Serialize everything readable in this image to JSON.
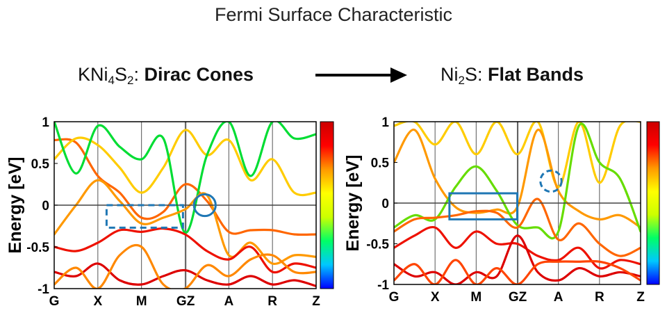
{
  "figure": {
    "title": "Fermi Surface Characteristic",
    "left_heading": {
      "formula_prefix": "KNi",
      "sub1": "4",
      "mid": "S",
      "sub2": "2",
      "colon": ": ",
      "bold": "Dirac Cones"
    },
    "right_heading": {
      "formula_prefix": "Ni",
      "sub1": "2",
      "mid": "S",
      "colon": ": ",
      "bold": "Flat Bands"
    },
    "arrow_color": "#000000",
    "annotation_color": "#1f77b4"
  },
  "chart_data": [
    {
      "type": "line",
      "ylabel": "Energy [eV]",
      "ylim": [
        -1,
        1
      ],
      "yticks": [
        1,
        0.5,
        0,
        -0.5,
        -1
      ],
      "ytick_labels": [
        "1",
        "0.5",
        "0",
        "-0.5",
        "-1"
      ],
      "kpoints": [
        "G",
        "X",
        "M",
        "G",
        "Z",
        "A",
        "R",
        "Z"
      ],
      "kpath": [
        0,
        1,
        2,
        3,
        3.02,
        4,
        5,
        6
      ],
      "xtick_labels": [
        "G",
        "X",
        "M",
        "GZ",
        "A",
        "R",
        "Z"
      ],
      "xtick_pos": [
        0,
        1,
        2,
        3.01,
        4,
        5,
        6
      ],
      "fermi_level": 0,
      "colormap": [
        "#0000ff",
        "#00c8ff",
        "#00ff66",
        "#ccff00",
        "#ffff00",
        "#ff9900",
        "#ff0000",
        "#cc0000"
      ],
      "grid": "vertical lines at high-symmetry points",
      "annotations": [
        {
          "shape": "dashed-rect",
          "x": [
            1.2,
            2.95
          ],
          "y": [
            -0.27,
            0.0
          ]
        },
        {
          "shape": "circle",
          "x": 3.45,
          "y": 0.0,
          "r": 0.13
        }
      ],
      "bands": [
        {
          "color": "#ff6600",
          "x": [
            0,
            0.5,
            1,
            1.5,
            2,
            2.5,
            3,
            3.5,
            4,
            4.5,
            5,
            5.5,
            6
          ],
          "y": [
            0.78,
            0.75,
            0.35,
            0.15,
            -0.15,
            -0.08,
            0.25,
            0.05,
            -0.32,
            -0.3,
            -0.3,
            -0.35,
            -0.35
          ]
        },
        {
          "color": "#ffcc00",
          "x": [
            0,
            0.5,
            1,
            1.5,
            2,
            2.5,
            3,
            3.5,
            4,
            4.5,
            5,
            5.5,
            6
          ],
          "y": [
            0.55,
            0.8,
            0.72,
            0.45,
            0.15,
            0.45,
            0.9,
            0.6,
            0.78,
            0.3,
            0.55,
            0.15,
            0.15
          ]
        },
        {
          "color": "#00dd33",
          "x": [
            0,
            0.5,
            1,
            1.5,
            2,
            2.5,
            3,
            3.5,
            4,
            4.5,
            5,
            5.5,
            6
          ],
          "y": [
            1.0,
            0.38,
            0.95,
            0.7,
            0.55,
            0.8,
            -0.33,
            0.6,
            1.0,
            0.35,
            1.0,
            0.8,
            0.85
          ]
        },
        {
          "color": "#ff9900",
          "x": [
            0,
            0.5,
            1,
            1.5,
            2,
            2.5,
            3,
            3.5,
            4,
            4.5,
            5,
            5.5,
            6
          ],
          "y": [
            -0.35,
            0.0,
            0.3,
            0.05,
            -0.22,
            -0.15,
            -0.05,
            0.12,
            -0.6,
            -0.45,
            -0.7,
            -0.6,
            -0.62
          ]
        },
        {
          "color": "#ee1100",
          "x": [
            0,
            0.5,
            1,
            1.5,
            2,
            2.5,
            3,
            3.5,
            4,
            4.5,
            5,
            5.5,
            6
          ],
          "y": [
            -0.5,
            -0.55,
            -0.45,
            -0.3,
            -0.32,
            -0.28,
            -0.35,
            -0.55,
            -0.65,
            -0.5,
            -0.8,
            -0.7,
            -0.75
          ]
        },
        {
          "color": "#dd0000",
          "x": [
            0,
            0.5,
            1,
            1.5,
            2,
            2.5,
            3,
            3.5,
            4,
            4.5,
            5,
            5.5,
            6
          ],
          "y": [
            -0.8,
            -0.85,
            -0.7,
            -0.9,
            -0.95,
            -0.85,
            -0.78,
            -0.9,
            -0.95,
            -0.85,
            -0.95,
            -0.9,
            -0.97
          ]
        },
        {
          "color": "#ff8800",
          "x": [
            0,
            0.5,
            1,
            1.5,
            2,
            2.5,
            3,
            3.5,
            4,
            4.5,
            5,
            5.5,
            6
          ],
          "y": [
            -0.95,
            -0.75,
            -1.0,
            -0.6,
            -0.5,
            -0.95,
            -1.0,
            -0.72,
            -0.85,
            -0.65,
            -0.6,
            -0.8,
            -0.8
          ]
        }
      ]
    },
    {
      "type": "line",
      "ylabel": "Energy [eV]",
      "ylim": [
        -1,
        1
      ],
      "yticks": [
        1,
        0.5,
        0,
        -0.5,
        -1
      ],
      "ytick_labels": [
        "1",
        "0.5",
        "0",
        "-0.5",
        "-1"
      ],
      "kpoints": [
        "G",
        "X",
        "M",
        "G",
        "Z",
        "A",
        "R",
        "Z"
      ],
      "kpath": [
        0,
        1,
        2,
        3,
        3.02,
        4,
        5,
        6
      ],
      "xtick_labels": [
        "G",
        "X",
        "M",
        "GZ",
        "A",
        "R",
        "Z"
      ],
      "xtick_pos": [
        0,
        1,
        2,
        3.01,
        4,
        5,
        6
      ],
      "fermi_level": 0,
      "colormap": [
        "#0000ff",
        "#00c8ff",
        "#00ff66",
        "#ccff00",
        "#ffff00",
        "#ff9900",
        "#ff0000",
        "#cc0000"
      ],
      "grid": "vertical lines at high-symmetry points",
      "annotations": [
        {
          "shape": "rect",
          "x": [
            1.35,
            3.0
          ],
          "y": [
            -0.2,
            0.12
          ]
        },
        {
          "shape": "dashed-circle",
          "x": 3.82,
          "y": 0.27,
          "r": 0.13
        }
      ],
      "bands": [
        {
          "color": "#ffcc00",
          "x": [
            0,
            0.5,
            1,
            1.5,
            2,
            2.5,
            3,
            3.5,
            4,
            4.5,
            5,
            5.5,
            6
          ],
          "y": [
            0.95,
            1.0,
            0.72,
            1.0,
            0.6,
            1.0,
            0.6,
            1.0,
            0.2,
            1.0,
            0.25,
            0.95,
            1.0
          ]
        },
        {
          "color": "#ff9900",
          "x": [
            0,
            0.5,
            1,
            1.5,
            2,
            2.5,
            3,
            3.5,
            4,
            4.5,
            5,
            5.5,
            6
          ],
          "y": [
            0.5,
            0.9,
            0.3,
            -0.05,
            -0.12,
            -0.08,
            -0.05,
            0.9,
            0.15,
            -0.1,
            -0.2,
            -0.15,
            -0.3
          ]
        },
        {
          "color": "#66dd00",
          "x": [
            0,
            0.5,
            1,
            1.5,
            2,
            2.5,
            3,
            3.5,
            4,
            4.5,
            5,
            5.5,
            6
          ],
          "y": [
            -0.3,
            -0.15,
            -0.2,
            0.2,
            0.45,
            0.15,
            -0.27,
            -0.3,
            -0.35,
            0.95,
            0.5,
            0.3,
            -0.35
          ]
        },
        {
          "color": "#ff6600",
          "x": [
            0,
            0.5,
            1,
            1.5,
            2,
            2.5,
            3,
            3.5,
            4,
            4.5,
            5,
            5.5,
            6
          ],
          "y": [
            -0.35,
            -0.2,
            -0.18,
            -0.15,
            -0.1,
            -0.12,
            -0.3,
            0.05,
            -0.45,
            -0.25,
            -0.5,
            -0.65,
            -0.55
          ]
        },
        {
          "color": "#ee1100",
          "x": [
            0,
            0.5,
            1,
            1.5,
            2,
            2.5,
            3,
            3.5,
            4,
            4.5,
            5,
            5.5,
            6
          ],
          "y": [
            -0.55,
            -0.4,
            -0.3,
            -0.55,
            -0.35,
            -0.5,
            -0.5,
            -0.65,
            -0.7,
            -0.55,
            -0.8,
            -0.7,
            -0.75
          ]
        },
        {
          "color": "#dd0000",
          "x": [
            0,
            0.5,
            1,
            1.5,
            2,
            2.5,
            3,
            3.5,
            4,
            4.5,
            5,
            5.5,
            6
          ],
          "y": [
            -0.75,
            -0.9,
            -0.85,
            -1.0,
            -0.85,
            -0.9,
            -0.4,
            -0.85,
            -0.95,
            -0.8,
            -0.9,
            -0.85,
            -0.9
          ]
        },
        {
          "color": "#ff4400",
          "x": [
            0,
            0.5,
            1,
            1.5,
            2,
            2.5,
            3,
            3.5,
            4,
            4.5,
            5,
            5.5,
            6
          ],
          "y": [
            -0.95,
            -0.75,
            -1.0,
            -0.7,
            -1.0,
            -0.8,
            -1.0,
            -0.75,
            -0.72,
            -0.72,
            -0.72,
            -0.8,
            -0.95
          ]
        }
      ]
    }
  ]
}
